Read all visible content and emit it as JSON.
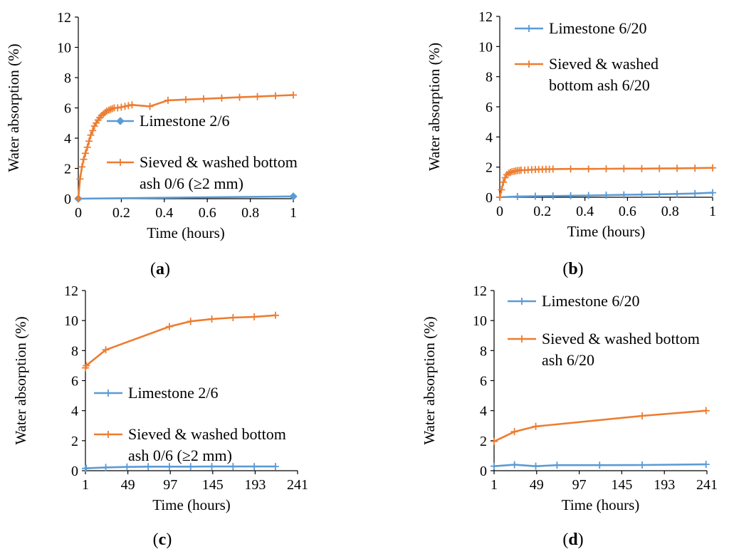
{
  "colors": {
    "blue": "#5b9bd5",
    "orange": "#ed7d31",
    "axis": "#000000"
  },
  "chart_data": [
    {
      "id": "a",
      "type": "line",
      "caption": "a",
      "xlabel": "Time  (hours)",
      "ylabel": "Water absorption (%)",
      "xlim": [
        0,
        1
      ],
      "ylim": [
        0,
        12
      ],
      "xticks": [
        0,
        0.2,
        0.4,
        0.6,
        0.8,
        1
      ],
      "xtick_labels": [
        "0",
        "0.2",
        "0.4",
        "0.6",
        "0.8",
        "1"
      ],
      "yticks": [
        0,
        2,
        4,
        6,
        8,
        10,
        12
      ],
      "ytick_labels": [
        "0",
        "2",
        "4",
        "6",
        "8",
        "10",
        "12"
      ],
      "legend_position": "center-right",
      "series": [
        {
          "name": "Limestone 2/6",
          "legend_lines": [
            "Limestone 2/6"
          ],
          "color": "blue",
          "marker": "diamond",
          "x": [
            0,
            1
          ],
          "y": [
            0,
            0.15
          ]
        },
        {
          "name": "Sieved & washed bottom ash 0/6 (≥2 mm)",
          "legend_lines": [
            "Sieved & washed bottom",
            "ash 0/6 (≥2 mm)"
          ],
          "color": "orange",
          "marker": "plus",
          "x": [
            0,
            0.008,
            0.017,
            0.025,
            0.033,
            0.042,
            0.05,
            0.058,
            0.067,
            0.075,
            0.083,
            0.092,
            0.1,
            0.108,
            0.117,
            0.125,
            0.133,
            0.142,
            0.15,
            0.158,
            0.167,
            0.183,
            0.2,
            0.217,
            0.233,
            0.25,
            0.333,
            0.417,
            0.5,
            0.583,
            0.667,
            0.75,
            0.833,
            0.917,
            1
          ],
          "y": [
            0,
            1.3,
            2.1,
            2.6,
            3.0,
            3.4,
            3.8,
            4.2,
            4.5,
            4.8,
            5.0,
            5.2,
            5.35,
            5.5,
            5.6,
            5.7,
            5.8,
            5.85,
            5.9,
            5.95,
            6.0,
            6.0,
            6.05,
            6.1,
            6.15,
            6.2,
            6.1,
            6.5,
            6.55,
            6.6,
            6.65,
            6.7,
            6.75,
            6.8,
            6.85
          ]
        }
      ]
    },
    {
      "id": "b",
      "type": "line",
      "caption": "b",
      "xlabel": "Time  (hours)",
      "ylabel": "Water absorption (%)",
      "xlim": [
        0,
        1
      ],
      "ylim": [
        0,
        12
      ],
      "xticks": [
        0,
        0.2,
        0.4,
        0.6,
        0.8,
        1
      ],
      "xtick_labels": [
        "0",
        "0.2",
        "0.4",
        "0.6",
        "0.8",
        "1"
      ],
      "yticks": [
        0,
        2,
        4,
        6,
        8,
        10,
        12
      ],
      "ytick_labels": [
        "0",
        "2",
        "4",
        "6",
        "8",
        "10",
        "12"
      ],
      "legend_position": "top",
      "series": [
        {
          "name": "Limestone 6/20",
          "legend_lines": [
            "Limestone 6/20"
          ],
          "color": "blue",
          "marker": "plus",
          "x": [
            0,
            0.083,
            0.167,
            0.25,
            0.333,
            0.417,
            0.5,
            0.583,
            0.667,
            0.75,
            0.833,
            0.917,
            1
          ],
          "y": [
            0,
            0.05,
            0.07,
            0.08,
            0.1,
            0.12,
            0.14,
            0.16,
            0.18,
            0.2,
            0.22,
            0.25,
            0.3
          ]
        },
        {
          "name": "Sieved & washed bottom ash 6/20",
          "legend_lines": [
            "Sieved & washed",
            "bottom ash 6/20"
          ],
          "color": "orange",
          "marker": "plus",
          "x": [
            0,
            0.008,
            0.017,
            0.025,
            0.033,
            0.042,
            0.05,
            0.058,
            0.067,
            0.075,
            0.083,
            0.092,
            0.1,
            0.117,
            0.133,
            0.15,
            0.167,
            0.183,
            0.2,
            0.217,
            0.233,
            0.25,
            0.333,
            0.417,
            0.5,
            0.583,
            0.667,
            0.75,
            0.833,
            0.917,
            1
          ],
          "y": [
            0,
            0.5,
            1.0,
            1.3,
            1.5,
            1.6,
            1.65,
            1.7,
            1.72,
            1.75,
            1.77,
            1.78,
            1.8,
            1.8,
            1.82,
            1.83,
            1.84,
            1.85,
            1.85,
            1.86,
            1.86,
            1.87,
            1.88,
            1.88,
            1.89,
            1.9,
            1.9,
            1.91,
            1.92,
            1.93,
            1.95
          ]
        }
      ]
    },
    {
      "id": "c",
      "type": "line",
      "caption": "c",
      "xlabel": "Time  (hours)",
      "ylabel": "Water absorption (%)",
      "xlim": [
        1,
        241
      ],
      "ylim": [
        0,
        12
      ],
      "xticks": [
        1,
        49,
        97,
        145,
        193,
        241
      ],
      "xtick_labels": [
        "1",
        "49",
        "97",
        "145",
        "193",
        "241"
      ],
      "yticks": [
        0,
        2,
        4,
        6,
        8,
        10,
        12
      ],
      "ytick_labels": [
        "0",
        "2",
        "4",
        "6",
        "8",
        "10",
        "12"
      ],
      "legend_position": "bottom-right",
      "series": [
        {
          "name": "Limestone 2/6",
          "legend_lines": [
            "Limestone 2/6"
          ],
          "color": "blue",
          "marker": "plus",
          "x": [
            1,
            2,
            24,
            48,
            72,
            96,
            120,
            144,
            168,
            192,
            216
          ],
          "y": [
            0.15,
            0.16,
            0.22,
            0.25,
            0.27,
            0.27,
            0.27,
            0.28,
            0.28,
            0.28,
            0.28
          ]
        },
        {
          "name": "Sieved & washed bottom ash 0/6 (≥2 mm)",
          "legend_lines": [
            "Sieved & washed bottom",
            "ash 0/6 (≥2 mm)"
          ],
          "color": "orange",
          "marker": "plus",
          "x": [
            1,
            2,
            24,
            96,
            120,
            144,
            168,
            192,
            216
          ],
          "y": [
            6.85,
            7.0,
            8.05,
            9.6,
            9.95,
            10.1,
            10.2,
            10.25,
            10.35
          ]
        }
      ]
    },
    {
      "id": "d",
      "type": "line",
      "caption": "d",
      "xlabel": "Time  (hours)",
      "ylabel": "Water absorption (%)",
      "xlim": [
        1,
        241
      ],
      "ylim": [
        0,
        12
      ],
      "xticks": [
        1,
        49,
        97,
        145,
        193,
        241
      ],
      "xtick_labels": [
        "1",
        "49",
        "97",
        "145",
        "193",
        "241"
      ],
      "yticks": [
        0,
        2,
        4,
        6,
        8,
        10,
        12
      ],
      "ytick_labels": [
        "0",
        "2",
        "4",
        "6",
        "8",
        "10",
        "12"
      ],
      "legend_position": "top",
      "series": [
        {
          "name": "Limestone 6/20",
          "legend_lines": [
            "Limestone 6/20"
          ],
          "color": "blue",
          "marker": "plus",
          "x": [
            1,
            24,
            48,
            72,
            120,
            168,
            240
          ],
          "y": [
            0.3,
            0.4,
            0.3,
            0.37,
            0.37,
            0.38,
            0.42
          ]
        },
        {
          "name": "Sieved & washed bottom ash 6/20",
          "legend_lines": [
            "Sieved & washed bottom",
            "ash 6/20"
          ],
          "color": "orange",
          "marker": "plus",
          "x": [
            1,
            24,
            48,
            168,
            240
          ],
          "y": [
            1.95,
            2.6,
            2.95,
            3.65,
            4.0
          ]
        }
      ]
    }
  ]
}
